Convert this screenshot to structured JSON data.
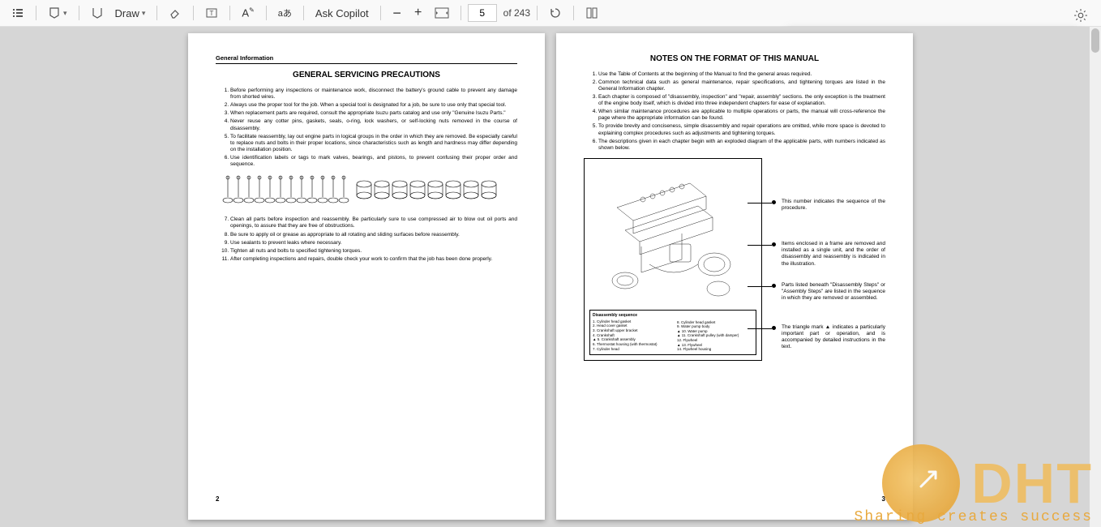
{
  "toolbar": {
    "draw_label": "Draw",
    "ask_copilot": "Ask Copilot",
    "page_current": "5",
    "page_total": "of 243"
  },
  "left_page": {
    "header": "General Information",
    "title": "GENERAL SERVICING PRECAUTIONS",
    "items": [
      "Before performing any inspections or maintenance work, disconnect the battery's ground cable to prevent any damage from shorted wires.",
      "Always use the proper tool for the job.\nWhen a special tool is designated for a job, be sure to use only that special tool.",
      "When replacement parts are required, consult the appropriate Isuzu parts catalog and use only \"Genuine Isuzu Parts.\"",
      "Never reuse any cotter pins, gaskets, seals, o-ring, lock washers, or self-locking nuts removed in the course of disassembly.",
      "To facilitate reassembly, lay out engine parts in logical groups in the order in which they are removed. Be especially careful to replace nuts and bolts in their proper locations, since characteristics such as length and hardness may differ depending on the installation position.",
      "Use identification labels or tags to mark valves, bearings, and pistons, to prevent confusing their proper order and sequence."
    ],
    "items_after": [
      "Clean all parts before inspection and reassembly.\nBe particularly sure to use compressed air to blow out oil ports and openings, to assure that they are free of obstructions.",
      "Be sure to apply oil or grease as appropriate to all rotating and sliding surfaces before reassembly.",
      "Use sealants to prevent leaks where necessary.",
      "Tighten all nuts and bolts to specified tightening torques.",
      "After completing inspections and repairs, double check your work to confirm that the job has been done properly."
    ],
    "page_num": "2"
  },
  "right_page": {
    "title": "NOTES ON THE FORMAT OF THIS MANUAL",
    "items": [
      "Use the Table of Contents at the beginning of the Manual to find the general areas required.",
      "Common technical data such as general maintenance, repair specifications, and tightening torques are listed in the General Information chapter.",
      "Each chapter is composed of \"disassembly, inspection\" and \"repair, assembly\" sections. the only exception is the treatment of the engine body itself, which is divided into three independent chapters for ease of explanation.",
      "When similar maintenance procedures are applicable to multiple operations or parts, the manual will cross-reference the page where the appropriate information can be found.",
      "To provide brevity and conciseness, simple disassembly and repair operations are omitted, while more space is devoted to explaining complex procedures such as adjustments and tightening torques.",
      "The descriptions given in each chapter begin with an exploded diagram of the applicable parts, with numbers indicated as shown below."
    ],
    "annotations": [
      "This number indicates the sequence of the procedure.",
      "Items enclosed in a frame are removed and installed as a single unit, and the order of disassembly and reassembly is indicated in the illustration.",
      "Parts listed beneath \"Disassembly Steps\" or \"Assembly Steps\" are listed in the sequence in which they are removed or assembled.",
      "The triangle mark ▲ indicates a particularly important part or operation, and is accompanied by detailed instructions in the text."
    ],
    "disasm": {
      "title": "Disassembly sequence",
      "col1": [
        "1. Cylinder head gasket",
        "2. Head cover gasket",
        "3. Crankshaft upper bracket",
        "4. Crankshaft",
        "▲ 5. Crankshaft assembly",
        "6. Thermostat housing\n   (with thermostat)",
        "7. Cylinder head"
      ],
      "col2": [
        "8. Cylinder head gasket",
        "9. Water pump body",
        "▲ 10. Water pump",
        "▲ 11. Crankshaft pulley (with damper)",
        "12. Flywheel",
        "▲ 13. Flywheel",
        "14. Flywheel housing"
      ]
    },
    "page_num": "3"
  },
  "watermark": {
    "brand": "DHT",
    "tagline": "Sharing creates success"
  }
}
